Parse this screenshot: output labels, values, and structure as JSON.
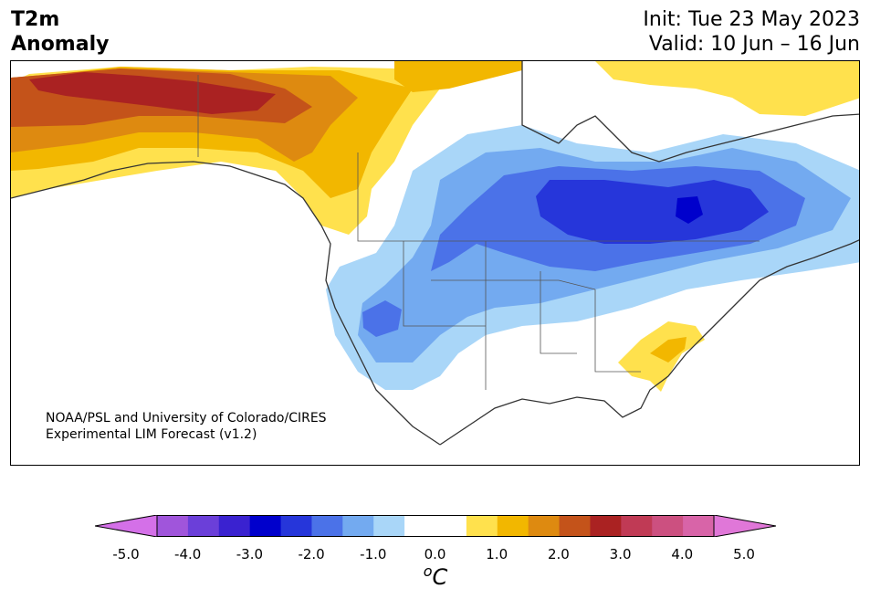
{
  "header": {
    "variable_line1": "T2m",
    "variable_line2": "Anomaly",
    "init": "Init: Tue 23 May 2023",
    "valid": "Valid: 10 Jun – 16 Jun"
  },
  "map": {
    "credit_line1": "NOAA/PSL and University of Colorado/CIRES",
    "credit_line2": "Experimental LIM Forecast (v1.2)"
  },
  "colorbar": {
    "units_symbol": "o",
    "units_letter": "C",
    "ticks": [
      "-5.0",
      "-4.0",
      "-3.0",
      "-2.0",
      "-1.0",
      "0.0",
      "1.0",
      "2.0",
      "3.0",
      "4.0",
      "5.0"
    ],
    "colors": [
      "#d470e8",
      "#a055db",
      "#6b3fd9",
      "#3a22d0",
      "#0000cc",
      "#2636da",
      "#4b72e8",
      "#73aaf0",
      "#a9d6f8",
      "#ffffff",
      "#ffffff",
      "#ffe14d",
      "#f2b700",
      "#de8a10",
      "#c4531a",
      "#aa2222",
      "#c03a55",
      "#cc5080",
      "#d864a8",
      "#e077d8"
    ]
  }
}
